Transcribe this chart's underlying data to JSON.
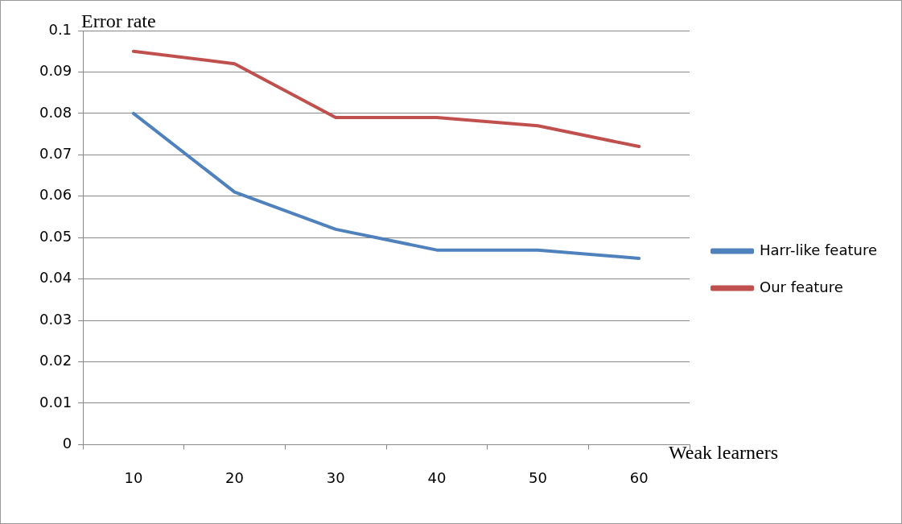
{
  "chart_data": {
    "type": "line",
    "xlabel": "Weak learners",
    "ylabel": "Error rate",
    "categories": [
      "10",
      "20",
      "30",
      "40",
      "50",
      "60"
    ],
    "series": [
      {
        "name": "Harr-like feature",
        "color": "#4f81bd",
        "values": [
          0.08,
          0.061,
          0.052,
          0.047,
          0.047,
          0.045
        ]
      },
      {
        "name": "Our feature",
        "color": "#c0504d",
        "values": [
          0.095,
          0.092,
          0.079,
          0.079,
          0.077,
          0.072
        ]
      }
    ],
    "ylim": [
      0,
      0.1
    ],
    "yticks": [
      0,
      0.01,
      0.02,
      0.03,
      0.04,
      0.05,
      0.06,
      0.07,
      0.08,
      0.09,
      0.1
    ],
    "grid": "y",
    "legend": "right",
    "marker": "none",
    "line_style": "solid"
  }
}
